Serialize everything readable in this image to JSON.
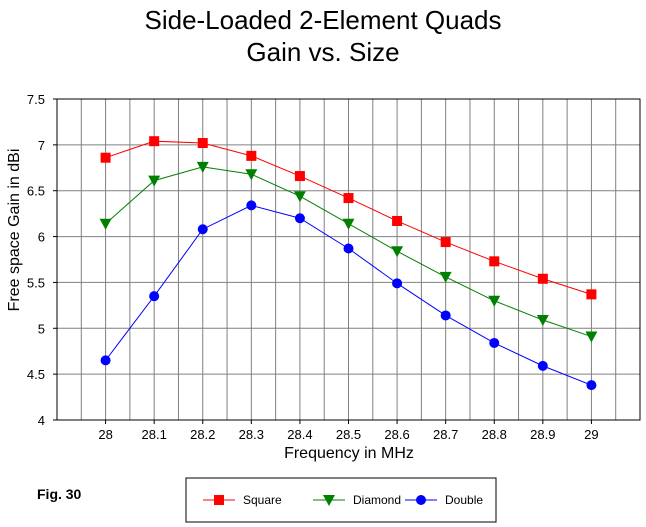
{
  "chart_data": {
    "type": "line",
    "title": "Side-Loaded 2-Element Quads",
    "subtitle": "Gain vs. Size",
    "xlabel": "Frequency in MHz",
    "ylabel": "Free space Gain in dBi",
    "x": [
      28,
      28.1,
      28.2,
      28.3,
      28.4,
      28.5,
      28.6,
      28.7,
      28.8,
      28.9,
      29
    ],
    "x_tick_labels": [
      "28",
      "28.1",
      "28.2",
      "28.3",
      "28.4",
      "28.5",
      "28.6",
      "28.7",
      "28.8",
      "28.9",
      "29"
    ],
    "y_ticks": [
      4,
      4.5,
      5,
      5.5,
      6,
      6.5,
      7,
      7.5
    ],
    "y_tick_labels": [
      "4",
      "4.5",
      "5",
      "5.5",
      "6",
      "6.5",
      "7",
      "7.5"
    ],
    "xlim": [
      27.9,
      29.1
    ],
    "ylim": [
      4,
      7.5
    ],
    "grid": true,
    "legend_position": "bottom-center",
    "series": [
      {
        "name": "Square",
        "color": "#ff0000",
        "marker": "square",
        "values": [
          6.86,
          7.04,
          7.02,
          6.88,
          6.66,
          6.42,
          6.17,
          5.94,
          5.73,
          5.54,
          5.37
        ]
      },
      {
        "name": "Diamond",
        "color": "#008000",
        "marker": "triangle-down",
        "values": [
          6.14,
          6.61,
          6.76,
          6.68,
          6.44,
          6.14,
          5.84,
          5.56,
          5.3,
          5.09,
          4.91
        ]
      },
      {
        "name": "Double",
        "color": "#0000ff",
        "marker": "circle",
        "values": [
          4.65,
          5.35,
          6.08,
          6.34,
          6.2,
          5.87,
          5.49,
          5.14,
          4.84,
          4.59,
          4.38
        ]
      }
    ],
    "annotation": "Fig. 30"
  }
}
